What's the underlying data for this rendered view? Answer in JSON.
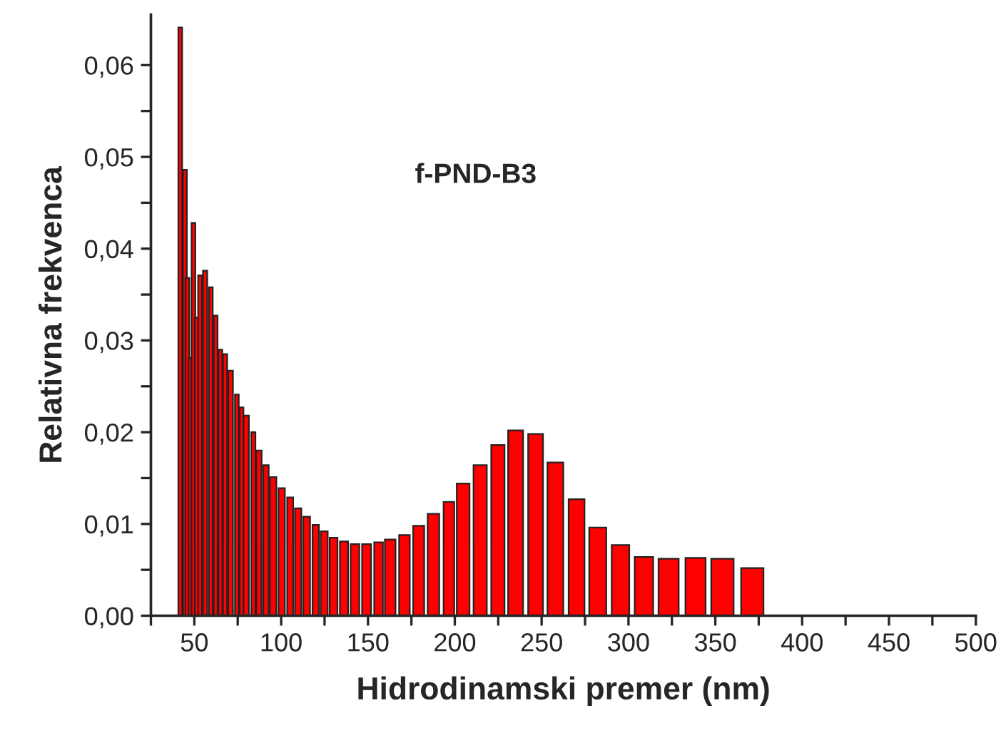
{
  "chart_data": {
    "type": "bar",
    "xlabel": "Hidrodinamski premer (nm)",
    "ylabel": "Relativna frekvenca",
    "annotations": [
      "f-PND-B3"
    ],
    "x": [
      41.9,
      44.6,
      46.0,
      47.8,
      49.5,
      51.4,
      53.3,
      56.2,
      59.5,
      62.3,
      65.0,
      67.7,
      70.9,
      74.5,
      77.2,
      79.9,
      84.0,
      87.2,
      91.3,
      95.4,
      100.3,
      105.2,
      109.8,
      114.7,
      119.9,
      124.8,
      130.2,
      136.2,
      142.5,
      149.2,
      156.1,
      162.8,
      171.0,
      179.2,
      187.7,
      196.6,
      204.8,
      214.6,
      224.8,
      235.0,
      246.5,
      257.9,
      270.1,
      282.3,
      295.4,
      308.9,
      323.1,
      338.6,
      354.1,
      371.3
    ],
    "values": [
      0.0641,
      0.0486,
      0.0368,
      0.0281,
      0.0428,
      0.0325,
      0.0371,
      0.0376,
      0.0358,
      0.0327,
      0.029,
      0.0285,
      0.0267,
      0.0241,
      0.0227,
      0.0218,
      0.02,
      0.018,
      0.0164,
      0.0151,
      0.0139,
      0.0129,
      0.0117,
      0.0108,
      0.0099,
      0.0092,
      0.0085,
      0.0081,
      0.0078,
      0.0078,
      0.008,
      0.0083,
      0.0088,
      0.0098,
      0.0111,
      0.0124,
      0.0144,
      0.0164,
      0.0186,
      0.0202,
      0.0198,
      0.0167,
      0.0127,
      0.0096,
      0.0077,
      0.0064,
      0.0062,
      0.0063,
      0.0062,
      0.0052
    ],
    "color": "#ff0000",
    "xlim": [
      25,
      500
    ],
    "xticks": [
      {
        "value": 25,
        "label": null
      },
      50,
      {
        "value": 75,
        "label": null
      },
      100,
      {
        "value": 125,
        "label": null
      },
      150,
      {
        "value": 175,
        "label": null
      },
      200,
      {
        "value": 225,
        "label": null
      },
      250,
      {
        "value": 275,
        "label": null
      },
      300,
      {
        "value": 325,
        "label": null
      },
      350,
      {
        "value": 375,
        "label": null
      },
      400,
      {
        "value": 425,
        "label": null
      },
      450,
      {
        "value": 475,
        "label": null
      },
      500
    ],
    "ylim": [
      0,
      0.0655
    ],
    "yticks": [
      {
        "value": 0,
        "label": "0,00"
      },
      {
        "value": 0.005,
        "label": null
      },
      {
        "value": 0.01,
        "label": "0,01"
      },
      {
        "value": 0.015,
        "label": null
      },
      {
        "value": 0.02,
        "label": "0,02"
      },
      {
        "value": 0.025,
        "label": null
      },
      {
        "value": 0.03,
        "label": "0,03"
      },
      {
        "value": 0.035,
        "label": null
      },
      {
        "value": 0.04,
        "label": "0,04"
      },
      {
        "value": 0.045,
        "label": null
      },
      {
        "value": 0.05,
        "label": "0,05"
      },
      {
        "value": 0.055,
        "label": null
      },
      {
        "value": 0.06,
        "label": "0,06"
      }
    ],
    "grid": false,
    "legend": false
  }
}
